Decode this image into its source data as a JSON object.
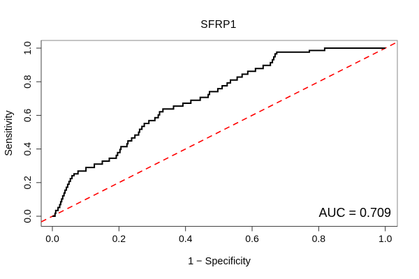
{
  "figure": {
    "title": "SFRP1",
    "x_axis_label": "1 − Specificity",
    "y_axis_label": "Sensitivity",
    "auc_annotation": "AUC = 0.709"
  },
  "colors": {
    "background": "#ffffff",
    "roc_curve": "#000000",
    "diagonal": "#ff0000",
    "box": "#888888",
    "axis": "#333333",
    "text": "#000000"
  },
  "chart_data": {
    "type": "line",
    "subtype": "roc-step-curve",
    "title": "SFRP1",
    "xlabel": "1 − Specificity",
    "ylabel": "Sensitivity",
    "xlim": [
      0,
      1
    ],
    "ylim": [
      0,
      1
    ],
    "grid": false,
    "legend": "none",
    "x_ticks": [
      0.0,
      0.2,
      0.4,
      0.6,
      0.8,
      1.0
    ],
    "y_ticks": [
      0.0,
      0.2,
      0.4,
      0.6,
      0.8,
      1.0
    ],
    "x_tick_labels": [
      "0.0",
      "0.2",
      "0.4",
      "0.6",
      "0.8",
      "1.0"
    ],
    "y_tick_labels": [
      "0.0",
      "0.2",
      "0.4",
      "0.6",
      "0.8",
      "1.0"
    ],
    "auc": 0.709,
    "annotation": "AUC = 0.709",
    "annotation_position": "bottom-right",
    "series": [
      {
        "name": "ROC curve",
        "color": "#000000",
        "style": "step-solid",
        "stroke_width": 2,
        "points": [
          [
            0.0,
            0.0
          ],
          [
            0.008,
            0.0
          ],
          [
            0.01,
            0.017
          ],
          [
            0.017,
            0.034
          ],
          [
            0.022,
            0.052
          ],
          [
            0.025,
            0.069
          ],
          [
            0.028,
            0.086
          ],
          [
            0.031,
            0.103
          ],
          [
            0.035,
            0.121
          ],
          [
            0.038,
            0.138
          ],
          [
            0.042,
            0.155
          ],
          [
            0.046,
            0.172
          ],
          [
            0.05,
            0.19
          ],
          [
            0.054,
            0.207
          ],
          [
            0.059,
            0.224
          ],
          [
            0.065,
            0.241
          ],
          [
            0.077,
            0.252
          ],
          [
            0.101,
            0.269
          ],
          [
            0.126,
            0.29
          ],
          [
            0.15,
            0.31
          ],
          [
            0.171,
            0.328
          ],
          [
            0.192,
            0.345
          ],
          [
            0.196,
            0.362
          ],
          [
            0.203,
            0.379
          ],
          [
            0.206,
            0.397
          ],
          [
            0.224,
            0.414
          ],
          [
            0.227,
            0.431
          ],
          [
            0.238,
            0.448
          ],
          [
            0.248,
            0.466
          ],
          [
            0.259,
            0.483
          ],
          [
            0.262,
            0.5
          ],
          [
            0.269,
            0.517
          ],
          [
            0.276,
            0.534
          ],
          [
            0.29,
            0.552
          ],
          [
            0.308,
            0.569
          ],
          [
            0.318,
            0.586
          ],
          [
            0.322,
            0.603
          ],
          [
            0.332,
            0.621
          ],
          [
            0.364,
            0.638
          ],
          [
            0.392,
            0.655
          ],
          [
            0.416,
            0.672
          ],
          [
            0.444,
            0.69
          ],
          [
            0.468,
            0.707
          ],
          [
            0.472,
            0.724
          ],
          [
            0.497,
            0.741
          ],
          [
            0.51,
            0.759
          ],
          [
            0.525,
            0.776
          ],
          [
            0.535,
            0.793
          ],
          [
            0.555,
            0.81
          ],
          [
            0.57,
            0.828
          ],
          [
            0.587,
            0.845
          ],
          [
            0.61,
            0.862
          ],
          [
            0.633,
            0.879
          ],
          [
            0.655,
            0.897
          ],
          [
            0.661,
            0.914
          ],
          [
            0.665,
            0.931
          ],
          [
            0.669,
            0.948
          ],
          [
            0.674,
            0.966
          ],
          [
            0.678,
            0.976
          ],
          [
            0.772,
            0.976
          ],
          [
            0.818,
            0.986
          ],
          [
            0.822,
            1.0
          ],
          [
            1.0,
            1.0
          ]
        ]
      },
      {
        "name": "Chance diagonal",
        "color": "#ff0000",
        "style": "dashed",
        "stroke_width": 1.6,
        "points": [
          [
            0,
            0
          ],
          [
            1,
            1
          ]
        ],
        "clipped_to_box": true
      }
    ]
  }
}
